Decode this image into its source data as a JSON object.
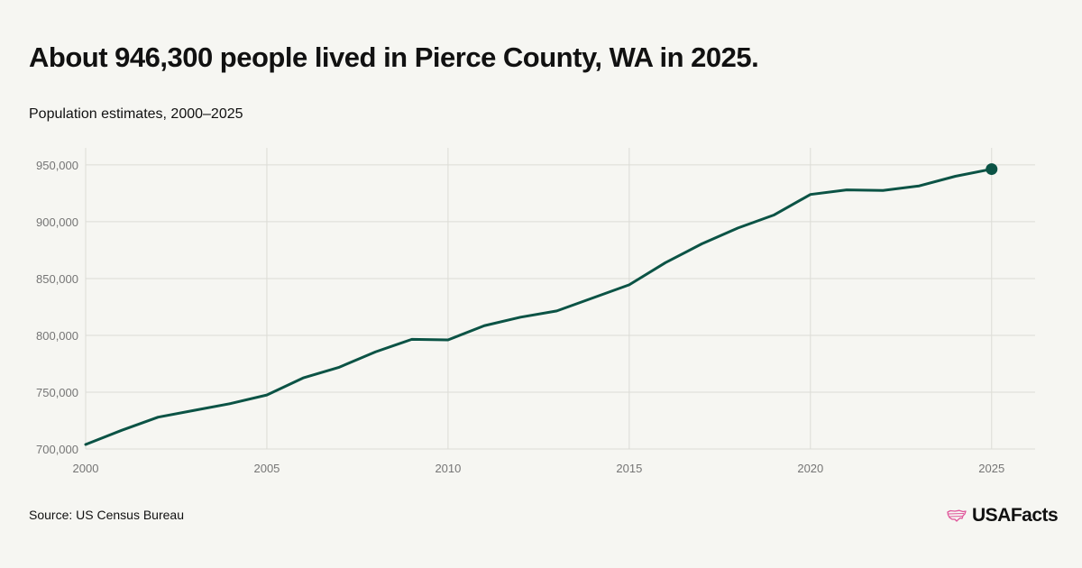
{
  "header": {
    "title": "About 946,300 people lived in Pierce County, WA in 2025.",
    "subtitle": "Population estimates, 2000–2025"
  },
  "footer": {
    "source": "Source: US Census Bureau",
    "brand": "USAFacts",
    "brand_icon": "us-map-icon",
    "brand_icon_color": "#e0559a"
  },
  "colors": {
    "line": "#0b5345",
    "grid": "#dcdcd6",
    "background": "#f6f6f2"
  },
  "chart_data": {
    "type": "line",
    "title": "About 946,300 people lived in Pierce County, WA in 2025.",
    "subtitle": "Population estimates, 2000–2025",
    "xlabel": "",
    "ylabel": "",
    "xlim": [
      2000,
      2026.2
    ],
    "ylim": [
      700000,
      965000
    ],
    "x_ticks": [
      2000,
      2005,
      2010,
      2015,
      2020,
      2025
    ],
    "y_ticks": [
      700000,
      750000,
      800000,
      850000,
      900000,
      950000
    ],
    "x_tick_labels": [
      "2000",
      "2005",
      "2010",
      "2015",
      "2020",
      "2025"
    ],
    "y_tick_labels": [
      "700,000",
      "750,000",
      "800,000",
      "850,000",
      "900,000",
      "950,000"
    ],
    "grid": true,
    "series": [
      {
        "x": [
          2000,
          2001,
          2002,
          2003,
          2004,
          2005,
          2006,
          2007,
          2008,
          2009,
          2010,
          2011,
          2012,
          2013,
          2014,
          2015,
          2016,
          2017,
          2018,
          2019,
          2020,
          2021,
          2022,
          2023,
          2024,
          2025
        ],
        "values": [
          704000,
          716500,
          728000,
          734000,
          740000,
          747500,
          762500,
          772000,
          785500,
          796500,
          796000,
          808500,
          816000,
          821500,
          833000,
          844500,
          864000,
          880500,
          894500,
          906000,
          924000,
          928000,
          927500,
          931500,
          940000,
          946300
        ]
      }
    ],
    "highlight_point": {
      "x": 2025,
      "y": 946300
    }
  }
}
